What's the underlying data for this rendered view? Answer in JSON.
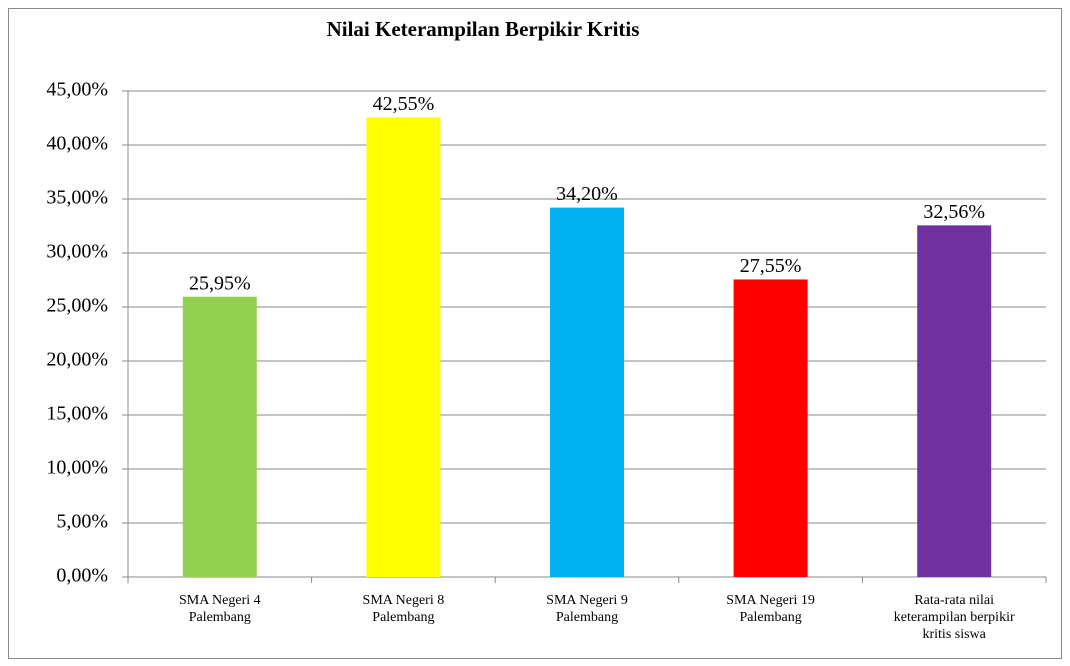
{
  "chart_data": {
    "type": "bar",
    "title": "Nilai Keterampilan Berpikir Kritis",
    "categories": [
      "SMA Negeri 4 Palembang",
      "SMA Negeri 8 Palembang",
      "SMA Negeri 9 Palembang",
      "SMA Negeri 19 Palembang",
      "Rata-rata nilai keterampilan berpikir kritis siswa"
    ],
    "values": [
      25.95,
      42.55,
      34.2,
      27.55,
      32.56
    ],
    "value_labels": [
      "25,95%",
      "42,55%",
      "34,20%",
      "27,55%",
      "32,56%"
    ],
    "colors": [
      "#92d050",
      "#ffff00",
      "#00b0f0",
      "#ff0000",
      "#7030a0"
    ],
    "ylim": [
      0,
      45
    ],
    "yticks": [
      {
        "value": 0,
        "label": "0,00%"
      },
      {
        "value": 5,
        "label": "5,00%"
      },
      {
        "value": 10,
        "label": "10,00%"
      },
      {
        "value": 15,
        "label": "15,00%"
      },
      {
        "value": 20,
        "label": "20,00%"
      },
      {
        "value": 25,
        "label": "25,00%"
      },
      {
        "value": 30,
        "label": "30,00%"
      },
      {
        "value": 35,
        "label": "35,00%"
      },
      {
        "value": 40,
        "label": "40,00%"
      },
      {
        "value": 45,
        "label": "45,00%"
      }
    ],
    "grid": true
  }
}
